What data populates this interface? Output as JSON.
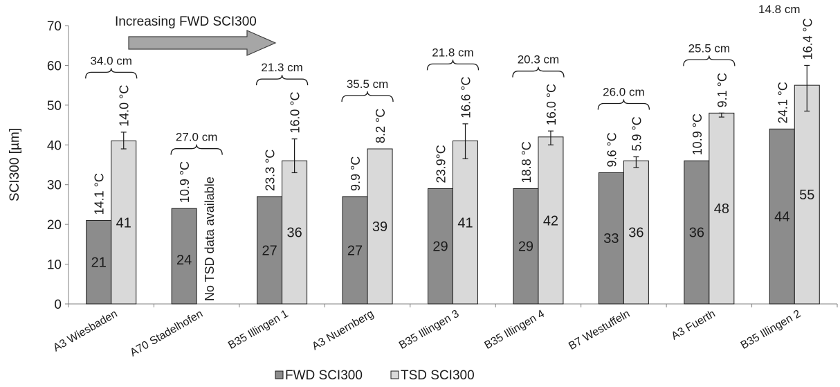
{
  "chart_data": {
    "type": "bar",
    "title": "",
    "xlabel": "",
    "ylabel": "SCI300 [µm]",
    "ylim": [
      0,
      70
    ],
    "y_ticks": [
      0,
      10,
      20,
      30,
      40,
      50,
      60,
      70
    ],
    "grid": false,
    "legend_position": "bottom",
    "categories": [
      "A3 Wiesbaden",
      "A70 Stadelhofen",
      "B35 Illingen 1",
      "A3 Nuernberg",
      "B35 Illingen 3",
      "B35 Illingen 4",
      "B7 Westuffeln",
      "A3 Fuerth",
      "B35 Illingen 2"
    ],
    "series": [
      {
        "name": "FWD SCI300",
        "color": "#8c8c8c",
        "values": [
          21,
          24,
          27,
          27,
          29,
          29,
          33,
          36,
          44
        ],
        "labels": [
          "21",
          "24",
          "27",
          "27",
          "29",
          "29",
          "33",
          "36",
          "44"
        ],
        "temperatures": [
          "14.1 °C",
          "10.9 °C",
          "23.3 °C",
          "9.9 °C",
          "23.9°C",
          "18.8 °C",
          "9.6 °C",
          "10.9 °C",
          "24.1 °C"
        ]
      },
      {
        "name": "TSD SCI300",
        "color": "#d9d9d9",
        "values": [
          41,
          null,
          36,
          39,
          41,
          42,
          36,
          48,
          55
        ],
        "labels": [
          "41",
          "",
          "36",
          "39",
          "41",
          "42",
          "36",
          "48",
          "55"
        ],
        "error_low": [
          39,
          null,
          33,
          null,
          36.5,
          40,
          34.3,
          47,
          48.5
        ],
        "error_high": [
          43.2,
          null,
          41.5,
          null,
          45.3,
          43.5,
          37,
          48,
          60
        ],
        "temperatures": [
          "14.0 °C",
          "",
          "16.0 °C",
          "8.2 °C",
          "16.6 °C",
          "16.0 °C",
          "5.9 °C",
          "9.1 °C",
          "16.4 °C"
        ]
      }
    ],
    "thickness_labels": [
      "34.0 cm",
      "27.0 cm",
      "21.3 cm",
      "35.5 cm",
      "21.8 cm",
      "20.3 cm",
      "26.0 cm",
      "25.5 cm",
      "14.8 cm"
    ],
    "no_data_note": "No TSD data available",
    "arrow_annotation": "Increasing FWD SCI300"
  }
}
